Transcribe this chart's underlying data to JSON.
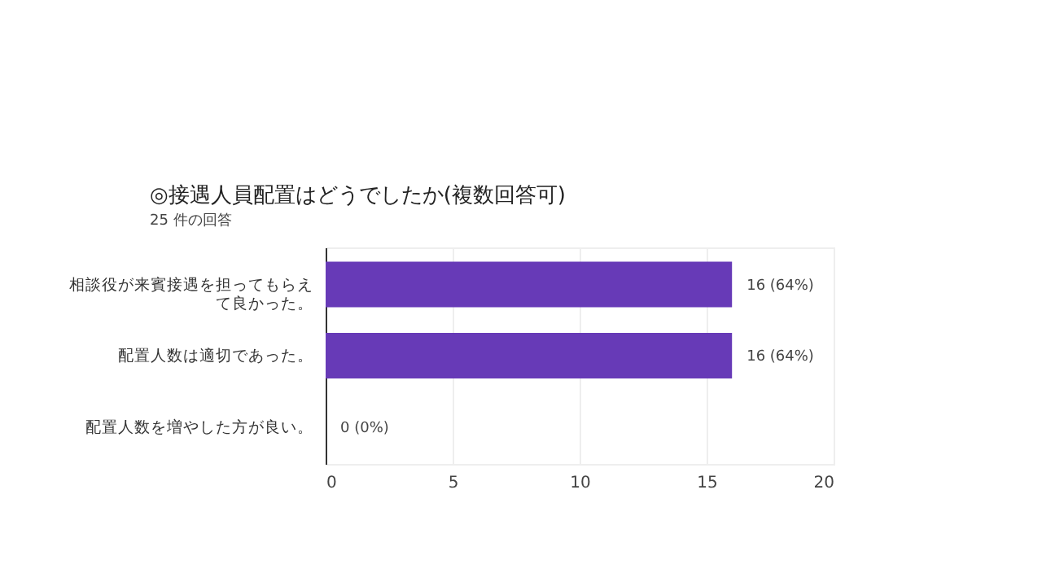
{
  "chart_data": {
    "type": "bar",
    "orientation": "horizontal",
    "title": "◎接遇人員配置はどうでしたか(複数回答可)",
    "subtitle": "25 件の回答",
    "categories": [
      "相談役が来賓接遇を担ってもらえて良かった。",
      "配置人数は適切であった。",
      "配置人数を増やした方が良い。"
    ],
    "values": [
      16,
      16,
      0
    ],
    "value_labels": [
      "16 (64%)",
      "16 (64%)",
      "0 (0%)"
    ],
    "color": "#673ab7",
    "xlim": [
      0,
      20
    ],
    "xticks": [
      0,
      5,
      10,
      15,
      20
    ],
    "grid": "x"
  }
}
